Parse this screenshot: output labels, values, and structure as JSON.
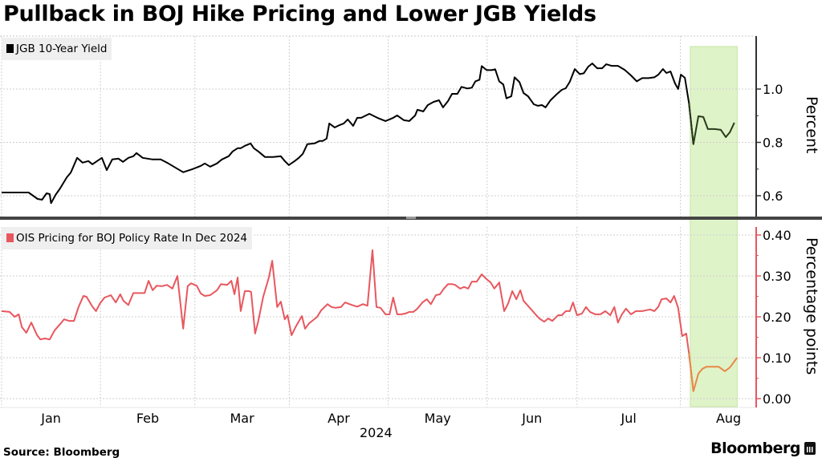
{
  "title": "Pullback in BOJ Hike Pricing and Lower JGB Yields",
  "source": "Source: Bloomberg",
  "brand": "Bloomberg",
  "chart_data": [
    {
      "type": "line",
      "panel": "top",
      "legend": "JGB 10-Year Yield",
      "ylabel": "Percent",
      "color": "#000000",
      "ylim": [
        0.52,
        1.2
      ],
      "yticks": [
        0.6,
        0.8,
        1.0
      ],
      "ytick_labels": [
        "0.6",
        "0.8",
        "1.0"
      ],
      "grid": true,
      "x_unit": "trading-day index from Jan 1 2024",
      "points": [
        [
          0,
          0.612
        ],
        [
          6,
          0.612
        ],
        [
          8,
          0.588
        ],
        [
          9,
          0.585
        ],
        [
          10,
          0.609
        ],
        [
          10.7,
          0.606
        ],
        [
          11,
          0.572
        ],
        [
          12,
          0.603
        ],
        [
          13,
          0.627
        ],
        [
          14.5,
          0.669
        ],
        [
          15.4,
          0.687
        ],
        [
          16.8,
          0.742
        ],
        [
          18,
          0.724
        ],
        [
          19.3,
          0.73
        ],
        [
          20.2,
          0.718
        ],
        [
          22.3,
          0.742
        ],
        [
          23.4,
          0.696
        ],
        [
          24.6,
          0.736
        ],
        [
          26,
          0.739
        ],
        [
          27,
          0.727
        ],
        [
          28.2,
          0.742
        ],
        [
          29.3,
          0.748
        ],
        [
          30,
          0.76
        ],
        [
          31.4,
          0.742
        ],
        [
          33.6,
          0.736
        ],
        [
          35.4,
          0.736
        ],
        [
          37.1,
          0.721
        ],
        [
          38.6,
          0.706
        ],
        [
          40.4,
          0.688
        ],
        [
          42.5,
          0.7
        ],
        [
          44.3,
          0.712
        ],
        [
          45.2,
          0.721
        ],
        [
          46.4,
          0.709
        ],
        [
          47.9,
          0.721
        ],
        [
          49,
          0.736
        ],
        [
          50.5,
          0.748
        ],
        [
          51.4,
          0.766
        ],
        [
          52.5,
          0.778
        ],
        [
          53.2,
          0.778
        ],
        [
          54.1,
          0.787
        ],
        [
          55.4,
          0.796
        ],
        [
          56.1,
          0.778
        ],
        [
          57.1,
          0.766
        ],
        [
          58.6,
          0.745
        ],
        [
          60.4,
          0.745
        ],
        [
          62.1,
          0.748
        ],
        [
          63,
          0.73
        ],
        [
          63.9,
          0.715
        ],
        [
          65.2,
          0.73
        ],
        [
          66.1,
          0.742
        ],
        [
          67,
          0.757
        ],
        [
          68,
          0.793
        ],
        [
          69.6,
          0.796
        ],
        [
          70.7,
          0.805
        ],
        [
          71.4,
          0.805
        ],
        [
          72.3,
          0.814
        ],
        [
          72.9,
          0.871
        ],
        [
          74.1,
          0.856
        ],
        [
          75.2,
          0.865
        ],
        [
          76.1,
          0.871
        ],
        [
          77,
          0.886
        ],
        [
          78.2,
          0.862
        ],
        [
          79.1,
          0.892
        ],
        [
          80,
          0.892
        ],
        [
          81.8,
          0.907
        ],
        [
          83.6,
          0.892
        ],
        [
          85.4,
          0.88
        ],
        [
          87.1,
          0.892
        ],
        [
          88,
          0.901
        ],
        [
          89.5,
          0.883
        ],
        [
          90.7,
          0.88
        ],
        [
          92,
          0.901
        ],
        [
          92.5,
          0.922
        ],
        [
          93.8,
          0.916
        ],
        [
          94.8,
          0.94
        ],
        [
          96.1,
          0.952
        ],
        [
          97.3,
          0.958
        ],
        [
          98.2,
          0.931
        ],
        [
          99.3,
          0.955
        ],
        [
          100.2,
          0.982
        ],
        [
          101.4,
          0.982
        ],
        [
          102.3,
          1.008
        ],
        [
          103.6,
          1.002
        ],
        [
          104.6,
          1.005
        ],
        [
          105.4,
          1.029
        ],
        [
          106.3,
          1.035
        ],
        [
          106.8,
          1.086
        ],
        [
          107.9,
          1.071
        ],
        [
          109,
          1.071
        ],
        [
          109.8,
          1.074
        ],
        [
          110.7,
          1.029
        ],
        [
          111.6,
          1.017
        ],
        [
          112.3,
          0.965
        ],
        [
          113.4,
          0.973
        ],
        [
          114.1,
          1.044
        ],
        [
          115.2,
          1.026
        ],
        [
          116.1,
          0.985
        ],
        [
          117.1,
          0.973
        ],
        [
          118.4,
          0.943
        ],
        [
          119.3,
          0.937
        ],
        [
          120.2,
          0.94
        ],
        [
          121,
          0.931
        ],
        [
          122.1,
          0.958
        ],
        [
          123.4,
          0.979
        ],
        [
          124.6,
          0.997
        ],
        [
          125.5,
          1.003
        ],
        [
          126.4,
          1.027
        ],
        [
          127.5,
          1.075
        ],
        [
          128.6,
          1.056
        ],
        [
          129.5,
          1.059
        ],
        [
          130.5,
          1.084
        ],
        [
          131.4,
          1.096
        ],
        [
          132.5,
          1.078
        ],
        [
          133.6,
          1.078
        ],
        [
          134.5,
          1.093
        ],
        [
          135.7,
          1.087
        ],
        [
          137.1,
          1.087
        ],
        [
          138.6,
          1.072
        ],
        [
          140,
          1.051
        ],
        [
          141.3,
          1.029
        ],
        [
          142.5,
          1.041
        ],
        [
          143.9,
          1.041
        ],
        [
          145.2,
          1.044
        ],
        [
          146.1,
          1.054
        ],
        [
          147.1,
          1.075
        ],
        [
          147.9,
          1.06
        ],
        [
          148.8,
          1.066
        ],
        [
          149.8,
          1.021
        ],
        [
          150.5,
          1.0
        ],
        [
          151.1,
          1.054
        ],
        [
          152,
          1.042
        ],
        [
          152.9,
          0.949
        ],
        [
          153.9,
          0.793
        ],
        [
          155,
          0.898
        ],
        [
          156.1,
          0.895
        ],
        [
          157.1,
          0.85
        ],
        [
          158.6,
          0.85
        ],
        [
          160,
          0.847
        ],
        [
          161.1,
          0.82
        ],
        [
          162,
          0.838
        ],
        [
          163.0,
          0.874
        ]
      ]
    },
    {
      "type": "line",
      "panel": "bottom",
      "legend": "OIS Pricing for BOJ Policy Rate In Dec 2024",
      "ylabel": "Percentage points",
      "color": "#e8575e",
      "highlight_color": "#e8884a",
      "ylim": [
        -0.02,
        0.42
      ],
      "yticks": [
        0.0,
        0.1,
        0.2,
        0.3,
        0.4
      ],
      "ytick_labels": [
        "0.00",
        "0.10",
        "0.20",
        "0.30",
        "0.40"
      ],
      "grid": true,
      "x_unit": "trading-day index from Jan 1 2024",
      "points": [
        [
          0,
          0.214
        ],
        [
          1.8,
          0.212
        ],
        [
          2.9,
          0.2
        ],
        [
          3.8,
          0.206
        ],
        [
          4.5,
          0.175
        ],
        [
          5.5,
          0.161
        ],
        [
          6.6,
          0.186
        ],
        [
          7.9,
          0.155
        ],
        [
          8.6,
          0.145
        ],
        [
          9.6,
          0.147
        ],
        [
          10.7,
          0.145
        ],
        [
          11.8,
          0.167
        ],
        [
          13,
          0.182
        ],
        [
          13.9,
          0.194
        ],
        [
          15,
          0.19
        ],
        [
          16.1,
          0.19
        ],
        [
          17.1,
          0.224
        ],
        [
          18.2,
          0.251
        ],
        [
          18.9,
          0.249
        ],
        [
          20.2,
          0.225
        ],
        [
          21,
          0.214
        ],
        [
          21.9,
          0.233
        ],
        [
          22.9,
          0.247
        ],
        [
          24.3,
          0.253
        ],
        [
          25.4,
          0.235
        ],
        [
          26.4,
          0.255
        ],
        [
          27.1,
          0.239
        ],
        [
          28.2,
          0.229
        ],
        [
          29.3,
          0.258
        ],
        [
          30.4,
          0.258
        ],
        [
          31.8,
          0.258
        ],
        [
          32.7,
          0.288
        ],
        [
          33.6,
          0.265
        ],
        [
          34.5,
          0.276
        ],
        [
          35.7,
          0.275
        ],
        [
          36.8,
          0.278
        ],
        [
          38.0,
          0.269
        ],
        [
          39.1,
          0.3
        ],
        [
          40.4,
          0.171
        ],
        [
          41.4,
          0.275
        ],
        [
          42.1,
          0.282
        ],
        [
          43.4,
          0.276
        ],
        [
          44.3,
          0.257
        ],
        [
          45.2,
          0.251
        ],
        [
          46.4,
          0.253
        ],
        [
          47.9,
          0.265
        ],
        [
          48.8,
          0.28
        ],
        [
          50.2,
          0.278
        ],
        [
          51.1,
          0.288
        ],
        [
          51.8,
          0.255
        ],
        [
          52.5,
          0.296
        ],
        [
          53.2,
          0.214
        ],
        [
          54.1,
          0.263
        ],
        [
          55,
          0.263
        ],
        [
          55.5,
          0.261
        ],
        [
          56.4,
          0.159
        ],
        [
          57.1,
          0.19
        ],
        [
          58.2,
          0.249
        ],
        [
          59.5,
          0.298
        ],
        [
          60.2,
          0.337
        ],
        [
          61.3,
          0.224
        ],
        [
          62.1,
          0.237
        ],
        [
          63,
          0.194
        ],
        [
          63.6,
          0.204
        ],
        [
          64.5,
          0.155
        ],
        [
          65.4,
          0.175
        ],
        [
          66.8,
          0.202
        ],
        [
          67.5,
          0.171
        ],
        [
          68.4,
          0.184
        ],
        [
          69.3,
          0.192
        ],
        [
          70.2,
          0.2
        ],
        [
          71.1,
          0.216
        ],
        [
          72.5,
          0.231
        ],
        [
          73.4,
          0.224
        ],
        [
          74.3,
          0.222
        ],
        [
          75.5,
          0.224
        ],
        [
          76.4,
          0.235
        ],
        [
          77.9,
          0.229
        ],
        [
          79.1,
          0.225
        ],
        [
          80.4,
          0.231
        ],
        [
          81.4,
          0.227
        ],
        [
          82.5,
          0.363
        ],
        [
          83.4,
          0.224
        ],
        [
          84.3,
          0.222
        ],
        [
          85.4,
          0.206
        ],
        [
          86.3,
          0.206
        ],
        [
          87.1,
          0.247
        ],
        [
          88,
          0.206
        ],
        [
          88.9,
          0.206
        ],
        [
          89.8,
          0.208
        ],
        [
          90.7,
          0.212
        ],
        [
          91.6,
          0.212
        ],
        [
          92.5,
          0.22
        ],
        [
          93.6,
          0.235
        ],
        [
          94.6,
          0.243
        ],
        [
          95.5,
          0.231
        ],
        [
          96.6,
          0.253
        ],
        [
          97.5,
          0.255
        ],
        [
          98.4,
          0.269
        ],
        [
          99.3,
          0.28
        ],
        [
          100.2,
          0.28
        ],
        [
          100.9,
          0.278
        ],
        [
          102,
          0.269
        ],
        [
          102.9,
          0.273
        ],
        [
          103.8,
          0.269
        ],
        [
          104.6,
          0.286
        ],
        [
          105.7,
          0.286
        ],
        [
          106.8,
          0.304
        ],
        [
          107.9,
          0.292
        ],
        [
          108.8,
          0.284
        ],
        [
          109.6,
          0.269
        ],
        [
          110.7,
          0.284
        ],
        [
          111.8,
          0.214
        ],
        [
          112.7,
          0.233
        ],
        [
          113.6,
          0.263
        ],
        [
          114.5,
          0.243
        ],
        [
          115.4,
          0.265
        ],
        [
          116.1,
          0.239
        ],
        [
          117.5,
          0.222
        ],
        [
          118.6,
          0.208
        ],
        [
          119.6,
          0.196
        ],
        [
          120.7,
          0.188
        ],
        [
          121.6,
          0.196
        ],
        [
          122.5,
          0.19
        ],
        [
          123.8,
          0.204
        ],
        [
          124.6,
          0.204
        ],
        [
          125.5,
          0.214
        ],
        [
          126.4,
          0.214
        ],
        [
          127.1,
          0.235
        ],
        [
          128.0,
          0.204
        ],
        [
          129.1,
          0.208
        ],
        [
          130,
          0.224
        ],
        [
          130.9,
          0.212
        ],
        [
          132.1,
          0.206
        ],
        [
          133.2,
          0.206
        ],
        [
          134.3,
          0.214
        ],
        [
          135.4,
          0.204
        ],
        [
          136.3,
          0.224
        ],
        [
          137.1,
          0.186
        ],
        [
          138,
          0.206
        ],
        [
          138.9,
          0.22
        ],
        [
          140,
          0.206
        ],
        [
          141.1,
          0.214
        ],
        [
          142.5,
          0.214
        ],
        [
          143.4,
          0.216
        ],
        [
          144.3,
          0.218
        ],
        [
          145.2,
          0.214
        ],
        [
          146.1,
          0.225
        ],
        [
          146.8,
          0.243
        ],
        [
          147.9,
          0.245
        ],
        [
          148.8,
          0.235
        ],
        [
          149.6,
          0.251
        ],
        [
          150.5,
          0.222
        ],
        [
          151.4,
          0.153
        ],
        [
          152.3,
          0.159
        ],
        [
          152.9,
          0.112
        ],
        [
          153.9,
          0.018
        ],
        [
          155,
          0.061
        ],
        [
          155.9,
          0.073
        ],
        [
          156.8,
          0.078
        ],
        [
          158.2,
          0.078
        ],
        [
          159.5,
          0.078
        ],
        [
          160.9,
          0.067
        ],
        [
          162,
          0.076
        ],
        [
          163.6,
          0.1
        ]
      ]
    }
  ],
  "x_axis": {
    "tick_labels": [
      "Jan",
      "Feb",
      "Mar",
      "Apr",
      "May",
      "Jun",
      "Jul",
      "Aug"
    ],
    "month_start_index": [
      0,
      22,
      43,
      64,
      86,
      108,
      128,
      151
    ],
    "range": [
      0,
      164
    ],
    "year_label": "2024"
  },
  "highlight": {
    "description": "shaded period",
    "color": "#dff3c8",
    "border_color": "#c7e6a5",
    "start_index": 153.2,
    "end_index": 164
  }
}
